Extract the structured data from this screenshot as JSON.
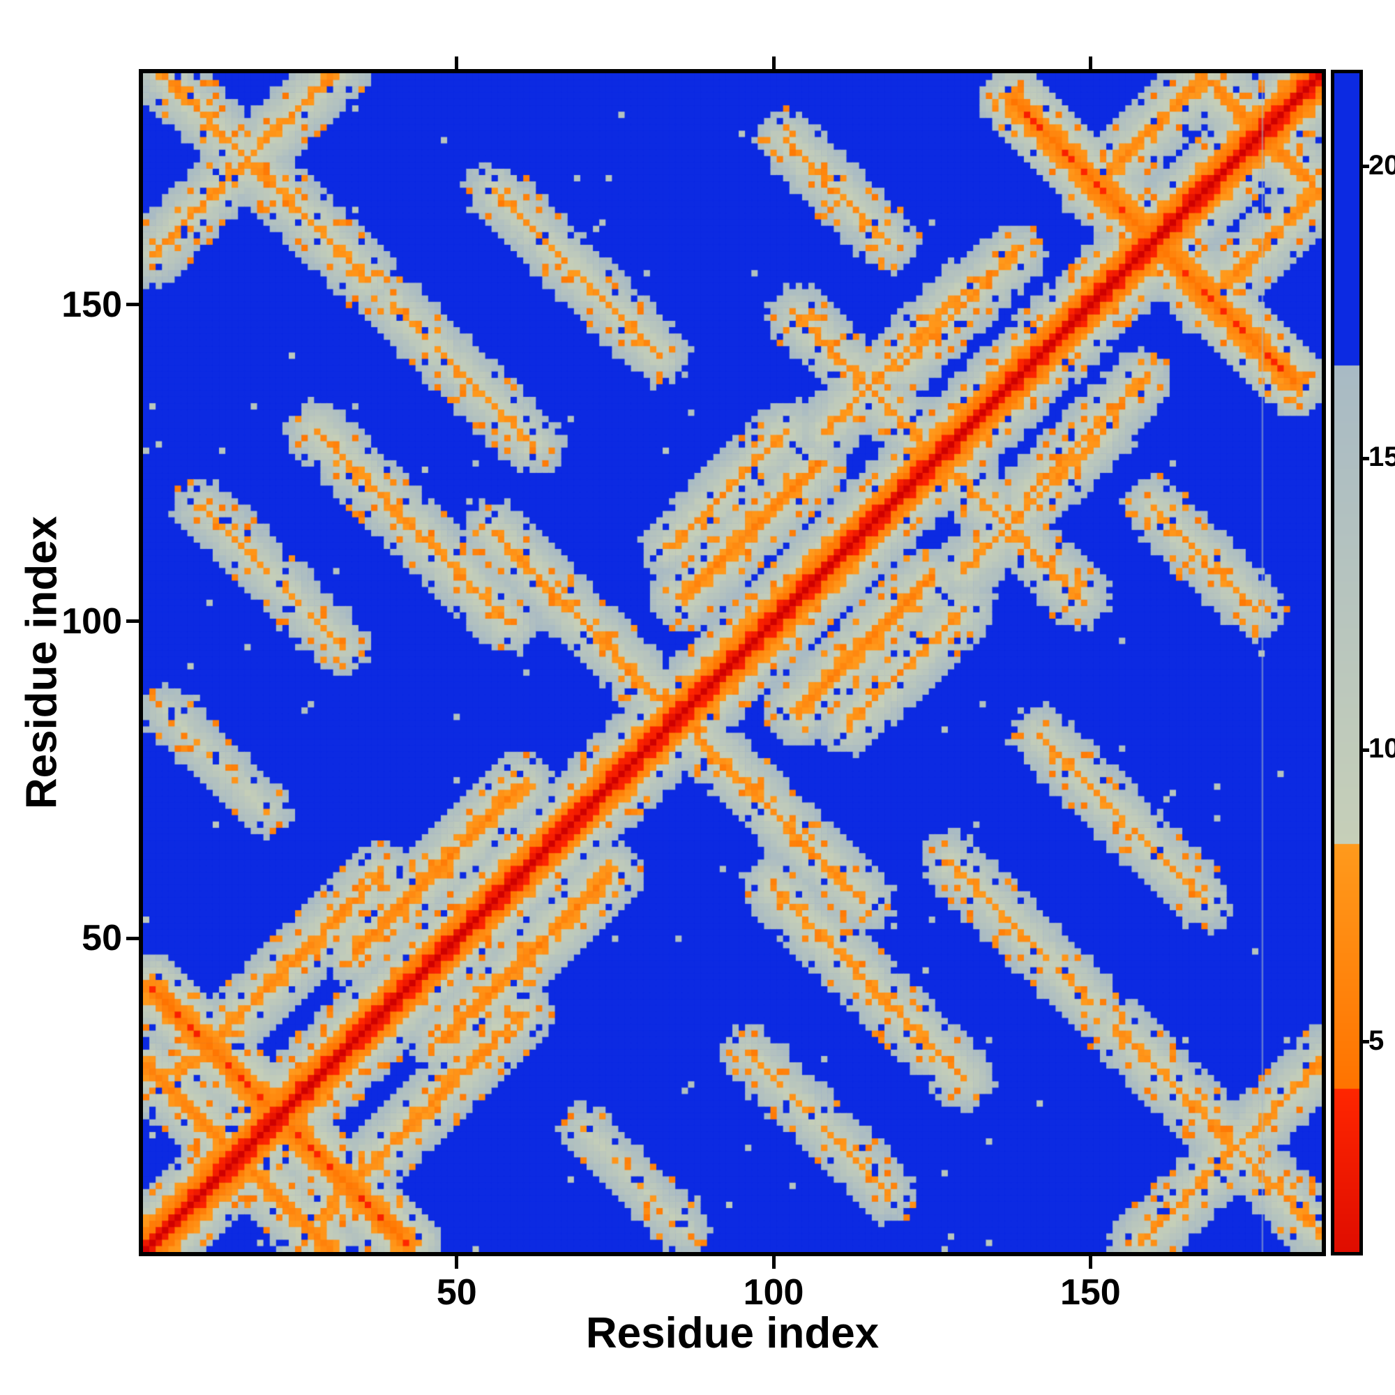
{
  "chart_data": {
    "type": "heatmap",
    "title": "",
    "xlabel": "Residue index",
    "ylabel": "Residue index",
    "n_residues": 186,
    "axis_ticks": [
      50,
      100,
      150
    ],
    "colorbar": {
      "ticks": [
        5,
        10,
        15,
        20
      ],
      "vmin": 1.4,
      "vmax": 21.6
    },
    "colormap_stops": [
      {
        "max": 4.2,
        "from": "#cf0000",
        "to": "#ff2600"
      },
      {
        "max": 8.4,
        "from": "#ff7300",
        "to": "#ff9a1c"
      },
      {
        "max": 16.6,
        "from": "#c6cfb8",
        "to": "#a8bac4"
      },
      {
        "max": 22.1,
        "from": "#0c2ae2",
        "to": "#0c2ae2"
      }
    ],
    "matrix_model": {
      "description": "Symmetric inter-residue distance map of a ~186-residue protein. Red diagonal = zero/short distance, orange ~5-8, pale grey-green ~9-16, royal blue = far (>17). Antiparallel/parallel secondary-structure contacts form X-shaped streaks near residues 1-45 and 140-186, plus off-diagonal contact clouds.",
      "base": {
        "offset": 1.2,
        "slope": 1.55,
        "cap": 21.9
      },
      "halo": {
        "radius": 5,
        "slope": 1.9
      },
      "noise": {
        "seed": 11,
        "jitter": 1.6,
        "orange_speck_p": 0.09,
        "blue_speck_p": 0.05,
        "far_speck_p": 0.004
      },
      "contacts": [
        [
          2,
          42,
          38,
          -1,
          4.5
        ],
        [
          1,
          30,
          28,
          -1,
          6
        ],
        [
          4,
          26,
          34,
          1,
          6.5
        ],
        [
          28,
          130,
          30,
          -1,
          7
        ],
        [
          10,
          118,
          22,
          -1,
          8
        ],
        [
          56,
          114,
          26,
          -1,
          7
        ],
        [
          84,
          112,
          18,
          1,
          7
        ],
        [
          104,
          148,
          26,
          -1,
          7
        ],
        [
          108,
          130,
          22,
          1,
          7
        ],
        [
          138,
          182,
          40,
          -1,
          4.5
        ],
        [
          150,
          168,
          26,
          1,
          6.5
        ],
        [
          2,
          158,
          30,
          1,
          7
        ],
        [
          4,
          186,
          32,
          -1,
          7
        ],
        [
          56,
          168,
          26,
          -1,
          7.5
        ],
        [
          102,
          176,
          16,
          -1,
          7.5
        ],
        [
          40,
          150,
          22,
          -1,
          7.5
        ],
        [
          4,
          86,
          16,
          -1,
          9
        ],
        [
          34,
          48,
          26,
          1,
          6
        ],
        [
          86,
          104,
          20,
          1,
          6
        ],
        [
          120,
          140,
          18,
          1,
          7
        ],
        [
          168,
          186,
          16,
          -1,
          6
        ]
      ],
      "artifact_column": 177
    }
  }
}
